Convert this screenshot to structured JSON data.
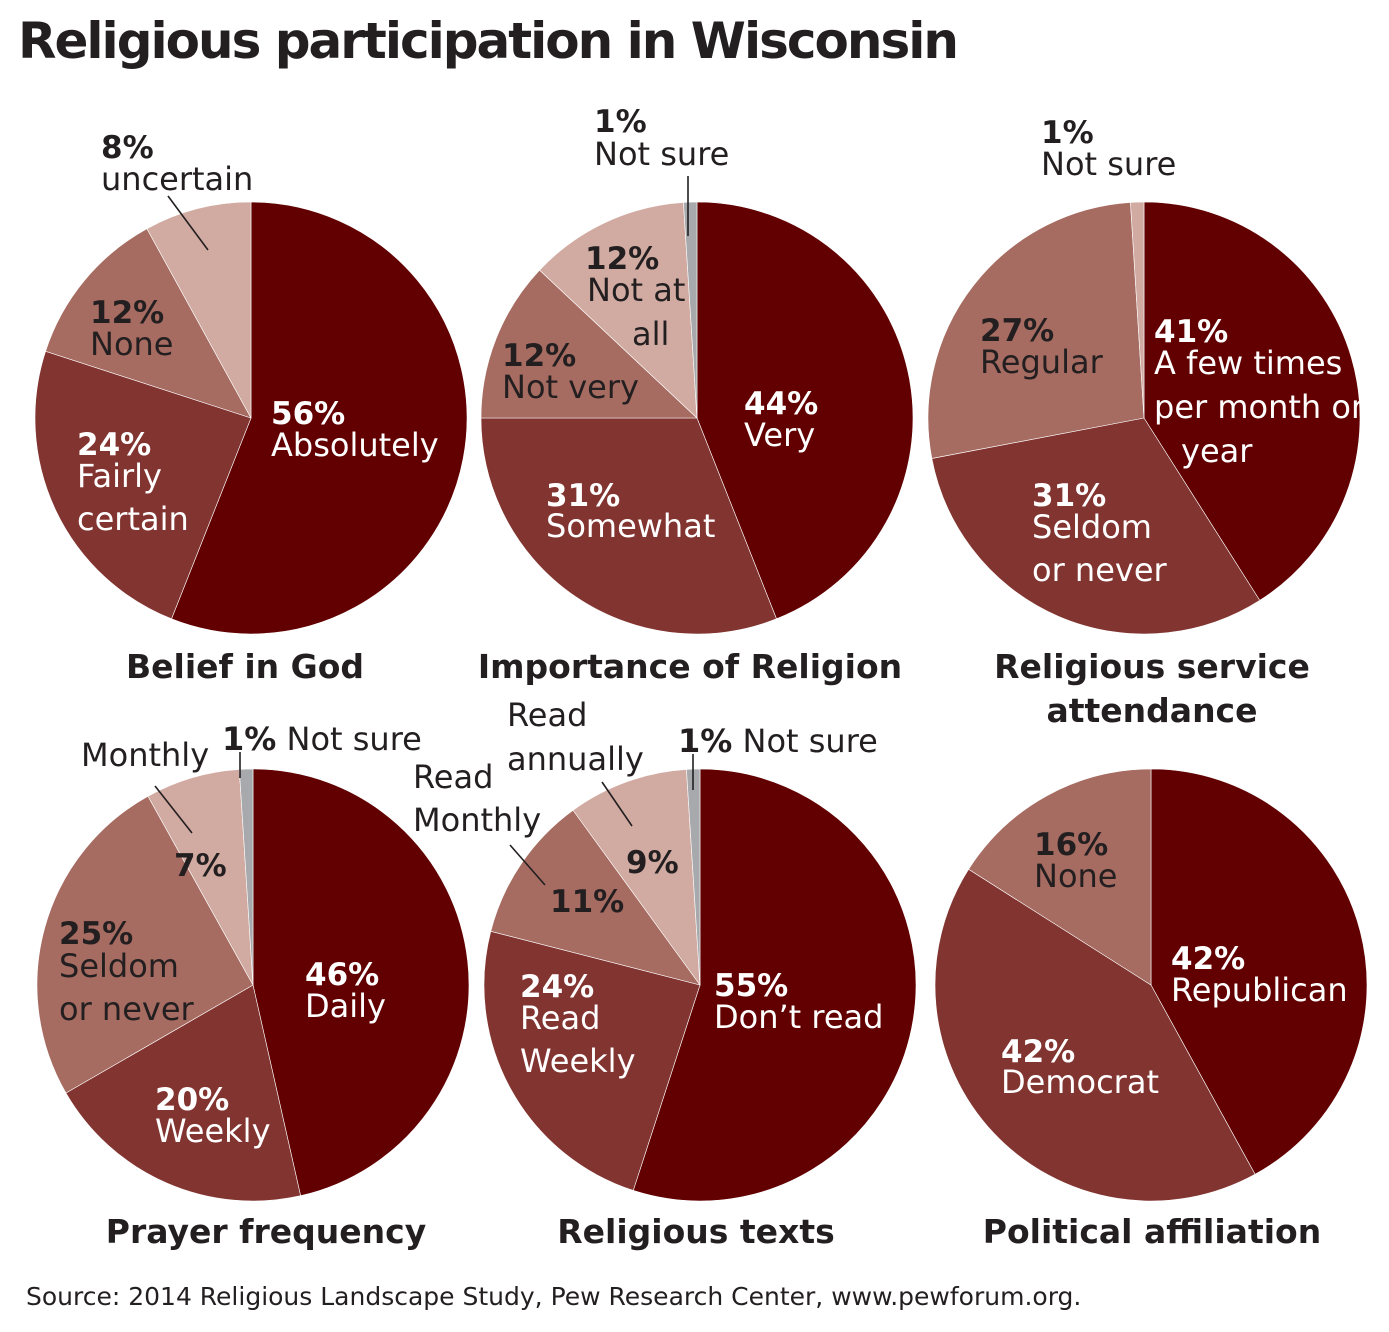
{
  "title": "Religious participation in Wisconsin",
  "source": "Source: 2014 Religious Landscape Study, Pew Research Center, www.pewforum.org.",
  "colors": {
    "darkest": "#620001",
    "dark": "#823430",
    "medium": "#a66b61",
    "light": "#d1aba2",
    "gray": "#a7a9ac",
    "label_on_dark": "#ffffff",
    "label_on_light": "#231f20"
  },
  "chart_data": [
    {
      "type": "pie",
      "title": "Belief in God",
      "slices": [
        {
          "pct": "56%",
          "label": "Absolutely",
          "value": 56,
          "color": "darkest"
        },
        {
          "pct": "24%",
          "label": "Fairly certain",
          "value": 24,
          "color": "dark"
        },
        {
          "pct": "12%",
          "label": "None",
          "value": 12,
          "color": "medium"
        },
        {
          "pct": "8%",
          "label": "uncertain",
          "value": 8,
          "color": "light"
        }
      ]
    },
    {
      "type": "pie",
      "title": "Importance of Religion",
      "slices": [
        {
          "pct": "44%",
          "label": "Very",
          "value": 44,
          "color": "darkest"
        },
        {
          "pct": "31%",
          "label": "Somewhat",
          "value": 31,
          "color": "dark"
        },
        {
          "pct": "12%",
          "label": "Not very",
          "value": 12,
          "color": "medium"
        },
        {
          "pct": "12%",
          "label": "Not at all",
          "value": 12,
          "color": "light"
        },
        {
          "pct": "1%",
          "label": "Not sure",
          "value": 1,
          "color": "gray"
        }
      ]
    },
    {
      "type": "pie",
      "title": "Religious service attendance",
      "slices": [
        {
          "pct": "41%",
          "label": "A few times per month or year",
          "value": 41,
          "color": "darkest"
        },
        {
          "pct": "31%",
          "label": "Seldom or never",
          "value": 31,
          "color": "dark"
        },
        {
          "pct": "27%",
          "label": "Regular",
          "value": 27,
          "color": "medium"
        },
        {
          "pct": "1%",
          "label": "Not sure",
          "value": 1,
          "color": "light"
        }
      ]
    },
    {
      "type": "pie",
      "title": "Prayer frequency",
      "slices": [
        {
          "pct": "46%",
          "label": "Daily",
          "value": 46,
          "color": "darkest"
        },
        {
          "pct": "20%",
          "label": "Weekly",
          "value": 20,
          "color": "dark"
        },
        {
          "pct": "25%",
          "label": "Seldom or never",
          "value": 25,
          "color": "medium"
        },
        {
          "pct": "7%",
          "label": "Monthly",
          "value": 7,
          "color": "light"
        },
        {
          "pct": "1%",
          "label": "Not sure",
          "value": 1,
          "color": "gray"
        }
      ]
    },
    {
      "type": "pie",
      "title": "Religious texts",
      "slices": [
        {
          "pct": "55%",
          "label": "Don’t read",
          "value": 55,
          "color": "darkest"
        },
        {
          "pct": "24%",
          "label": "Read Weekly",
          "value": 24,
          "color": "dark"
        },
        {
          "pct": "11%",
          "label": "Read Monthly",
          "value": 11,
          "color": "medium"
        },
        {
          "pct": "9%",
          "label": "Read annually",
          "value": 9,
          "color": "light"
        },
        {
          "pct": "1%",
          "label": "Not sure",
          "value": 1,
          "color": "gray"
        }
      ]
    },
    {
      "type": "pie",
      "title": "Political affiliation",
      "slices": [
        {
          "pct": "42%",
          "label": "Republican",
          "value": 42,
          "color": "darkest"
        },
        {
          "pct": "42%",
          "label": "Democrat",
          "value": 42,
          "color": "dark"
        },
        {
          "pct": "16%",
          "label": "None",
          "value": 16,
          "color": "medium"
        }
      ]
    }
  ]
}
